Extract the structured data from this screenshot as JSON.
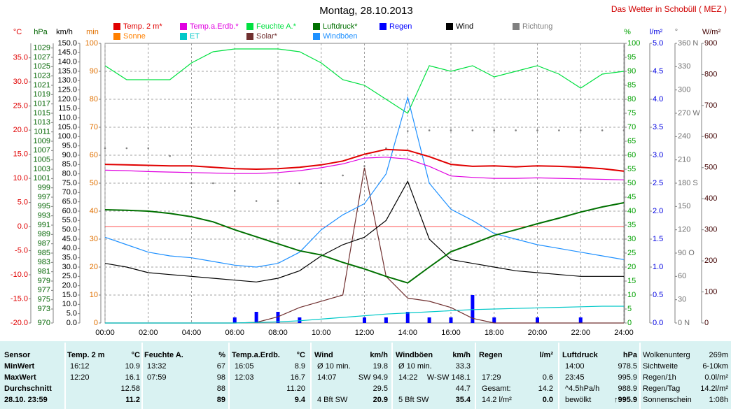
{
  "chart_data": {
    "type": "line",
    "title": "Montag, 28.10.2013",
    "subtitle": "Das Wetter in Schobüll ( MEZ )",
    "x": [
      0,
      1,
      2,
      3,
      4,
      5,
      6,
      7,
      8,
      9,
      10,
      11,
      12,
      13,
      14,
      15,
      16,
      17,
      18,
      19,
      20,
      21,
      22,
      23,
      24
    ],
    "xlim": [
      0,
      24
    ],
    "xticks": [
      {
        "value": 0,
        "label": "00:00"
      },
      {
        "value": 2,
        "label": "02:00"
      },
      {
        "value": 4,
        "label": "04:00"
      },
      {
        "value": 6,
        "label": "06:00"
      },
      {
        "value": 8,
        "label": "08:00"
      },
      {
        "value": 10,
        "label": "10:00"
      },
      {
        "value": 12,
        "label": "12:00"
      },
      {
        "value": 14,
        "label": "14:00"
      },
      {
        "value": 16,
        "label": "16:00"
      },
      {
        "value": 18,
        "label": "18:00"
      },
      {
        "value": 20,
        "label": "20:00"
      },
      {
        "value": 22,
        "label": "22:00"
      },
      {
        "value": 24,
        "label": "24:00"
      }
    ],
    "xgrid": true,
    "axes": [
      {
        "label": "°C",
        "color": "#e00000",
        "side": "left",
        "lim": [
          -20,
          38
        ],
        "ticks": [
          {
            "value": -20,
            "label": "-20.0"
          },
          {
            "value": -15,
            "label": "-15.0"
          },
          {
            "value": -10,
            "label": "-10.0"
          },
          {
            "value": -5,
            "label": "-5.0"
          },
          {
            "value": 0,
            "label": "0.0"
          },
          {
            "value": 5,
            "label": "5.0"
          },
          {
            "value": 10,
            "label": "10.0"
          },
          {
            "value": 15,
            "label": "15.0"
          },
          {
            "value": 20,
            "label": "20.0"
          },
          {
            "value": 25,
            "label": "25.0"
          },
          {
            "value": 30,
            "label": "30.0"
          },
          {
            "value": 35,
            "label": "35.0"
          }
        ]
      },
      {
        "label": "hPa",
        "color": "#006400",
        "side": "left",
        "lim": [
          970,
          1030
        ],
        "ticks": [
          970,
          973,
          975,
          977,
          979,
          981,
          983,
          985,
          987,
          989,
          991,
          993,
          995,
          997,
          999,
          1001,
          1003,
          1005,
          1007,
          1009,
          1011,
          1013,
          1015,
          1017,
          1019,
          1021,
          1023,
          1025,
          1027,
          1029
        ]
      },
      {
        "label": "km/h",
        "color": "#000000",
        "side": "left",
        "lim": [
          0,
          150
        ],
        "ticks": [
          {
            "value": 0,
            "label": "0.0"
          },
          {
            "value": 5,
            "label": "5.0"
          },
          {
            "value": 10,
            "label": "10.0"
          },
          {
            "value": 15,
            "label": "15.0"
          },
          {
            "value": 20,
            "label": "20.0"
          },
          {
            "value": 25,
            "label": "25.0"
          },
          {
            "value": 30,
            "label": "30.0"
          },
          {
            "value": 35,
            "label": "35.0"
          },
          {
            "value": 40,
            "label": "40.0"
          },
          {
            "value": 45,
            "label": "45.0"
          },
          {
            "value": 50,
            "label": "50.0"
          },
          {
            "value": 55,
            "label": "55.0"
          },
          {
            "value": 60,
            "label": "60.0"
          },
          {
            "value": 65,
            "label": "65.0"
          },
          {
            "value": 70,
            "label": "70.0"
          },
          {
            "value": 75,
            "label": "75.0"
          },
          {
            "value": 80,
            "label": "80.0"
          },
          {
            "value": 85,
            "label": "85.0"
          },
          {
            "value": 90,
            "label": "90.0"
          },
          {
            "value": 95,
            "label": "95.0"
          },
          {
            "value": 100,
            "label": "100.0"
          },
          {
            "value": 105,
            "label": "105.0"
          },
          {
            "value": 110,
            "label": "110.0"
          },
          {
            "value": 115,
            "label": "115.0"
          },
          {
            "value": 120,
            "label": "120.0"
          },
          {
            "value": 125,
            "label": "125.0"
          },
          {
            "value": 130,
            "label": "130.0"
          },
          {
            "value": 135,
            "label": "135.0"
          },
          {
            "value": 140,
            "label": "140.0"
          },
          {
            "value": 145,
            "label": "145.0"
          },
          {
            "value": 150,
            "label": "150.0"
          }
        ]
      },
      {
        "label": "min",
        "color": "#e07000",
        "side": "left",
        "lim": [
          0,
          100
        ],
        "grid": true,
        "ticks": [
          0,
          10,
          20,
          30,
          40,
          50,
          60,
          70,
          80,
          90,
          100
        ]
      },
      {
        "label": "%",
        "color": "#00a000",
        "side": "right",
        "lim": [
          0,
          100
        ],
        "ticks": [
          0,
          5,
          10,
          15,
          20,
          25,
          30,
          35,
          40,
          45,
          50,
          55,
          60,
          65,
          70,
          75,
          80,
          85,
          90,
          95,
          100
        ]
      },
      {
        "label": "l/m²",
        "color": "#0000e0",
        "side": "right",
        "lim": [
          0,
          5
        ],
        "ticks": [
          {
            "value": 0,
            "label": "0.0"
          },
          {
            "value": 0.5,
            "label": "0.5"
          },
          {
            "value": 1,
            "label": "1.0"
          },
          {
            "value": 1.5,
            "label": "1.5"
          },
          {
            "value": 2,
            "label": "2.0"
          },
          {
            "value": 2.5,
            "label": "2.5"
          },
          {
            "value": 3,
            "label": "3.0"
          },
          {
            "value": 3.5,
            "label": "3.5"
          },
          {
            "value": 4,
            "label": "4.0"
          },
          {
            "value": 4.5,
            "label": "4.5"
          },
          {
            "value": 5,
            "label": "5.0"
          }
        ]
      },
      {
        "label": "°",
        "color": "#707070",
        "side": "right",
        "lim": [
          0,
          360
        ],
        "ticks": [
          {
            "value": 0,
            "label": "0 N"
          },
          30,
          60,
          {
            "value": 90,
            "label": "90 O"
          },
          120,
          150,
          {
            "value": 180,
            "label": "180 S"
          },
          210,
          240,
          {
            "value": 270,
            "label": "270 W"
          },
          300,
          330,
          {
            "value": 360,
            "label": "360 N"
          }
        ]
      },
      {
        "label": "W/m²",
        "color": "#400000",
        "side": "right",
        "lim": [
          0,
          900
        ],
        "ticks": [
          0,
          100,
          200,
          300,
          400,
          500,
          600,
          700,
          800,
          900
        ]
      }
    ],
    "reference_line": {
      "axis": 0,
      "value": 0,
      "color": "#ff5050"
    },
    "series": [
      {
        "name": "Temp. 2 m*",
        "color": "#e00000",
        "axis": 0,
        "style": "line",
        "values": [
          12.9,
          12.8,
          12.7,
          12.6,
          12.6,
          12.3,
          12.0,
          11.9,
          12.0,
          12.3,
          12.8,
          13.6,
          15.0,
          16.0,
          15.8,
          14.5,
          12.9,
          12.5,
          12.6,
          12.4,
          12.6,
          12.5,
          12.3,
          12.0,
          11.5
        ]
      },
      {
        "name": "Sonne",
        "color": "#ff8000",
        "axis": 3,
        "style": "bar",
        "values": [
          0,
          0,
          0,
          0,
          0,
          0,
          0,
          0,
          0,
          0,
          0,
          0,
          1,
          0.8,
          0,
          0.5,
          1,
          0.5,
          0,
          0,
          0,
          0,
          0,
          0,
          0
        ]
      },
      {
        "name": "Temp.a.Erdb.*",
        "color": "#e000e0",
        "axis": 0,
        "style": "line",
        "values": [
          11.7,
          11.6,
          11.4,
          11.3,
          11.2,
          11.1,
          11.0,
          11.0,
          11.2,
          11.6,
          12.2,
          13.0,
          14.2,
          14.4,
          14.0,
          12.5,
          10.5,
          10.2,
          10.0,
          10.0,
          10.1,
          10.0,
          9.9,
          9.8,
          9.7
        ]
      },
      {
        "name": "ET",
        "color": "#00c8c8",
        "axis": 5,
        "style": "line",
        "values": [
          0,
          0,
          0,
          0,
          0,
          0,
          0,
          0.01,
          0.02,
          0.04,
          0.07,
          0.1,
          0.13,
          0.16,
          0.18,
          0.2,
          0.22,
          0.24,
          0.25,
          0.26,
          0.27,
          0.28,
          0.29,
          0.3,
          0.3
        ]
      },
      {
        "name": "Feuchte A.*",
        "color": "#00e040",
        "axis": 4,
        "style": "line",
        "values": [
          92,
          87,
          87,
          87,
          93,
          97,
          98,
          98,
          98,
          97,
          93,
          87,
          85,
          80,
          75,
          92,
          90,
          92,
          88,
          90,
          92,
          89,
          84,
          89,
          90
        ]
      },
      {
        "name": "Solar*",
        "color": "#703030",
        "axis": 7,
        "style": "line",
        "values": [
          0,
          0,
          0,
          0,
          0,
          0,
          0,
          2,
          20,
          50,
          70,
          90,
          500,
          150,
          80,
          70,
          50,
          15,
          0,
          0,
          0,
          0,
          0,
          0,
          0
        ]
      },
      {
        "name": "Luftdruck*",
        "color": "#007000",
        "axis": 1,
        "style": "line",
        "values": [
          994.3,
          994.2,
          994.0,
          993.5,
          992.8,
          991.7,
          990.0,
          988.5,
          987.0,
          985.5,
          984.6,
          983.0,
          981.6,
          980.0,
          978.6,
          982.0,
          985.3,
          987.0,
          988.8,
          990.0,
          991.3,
          992.5,
          993.8,
          994.9,
          995.8
        ]
      },
      {
        "name": "Windböen",
        "color": "#1e90ff",
        "axis": 2,
        "style": "line",
        "values": [
          46,
          42,
          38,
          36,
          35,
          33,
          31,
          30,
          32,
          38,
          50,
          58,
          64,
          80,
          121,
          75,
          61,
          55,
          48,
          45,
          42,
          40,
          38,
          36,
          34
        ]
      },
      {
        "name": "Regen",
        "color": "#0000ff",
        "axis": 5,
        "style": "bar",
        "values": [
          0,
          0,
          0,
          0,
          0,
          0,
          0.1,
          0.2,
          0.2,
          0.1,
          0,
          0,
          0.1,
          0.1,
          0.2,
          0.1,
          0.1,
          0.5,
          0.1,
          0,
          0.1,
          0,
          0.1,
          0,
          0
        ]
      },
      {
        "name": "Wind",
        "color": "#000000",
        "axis": 2,
        "style": "line",
        "values": [
          32,
          30,
          27,
          26,
          25,
          24,
          23,
          22,
          24,
          28,
          36,
          42,
          46,
          55,
          76,
          45,
          34,
          32,
          30,
          28,
          27,
          26,
          25,
          25,
          25
        ]
      },
      {
        "name": "Richtung",
        "color": "#808080",
        "axis": 6,
        "style": "dots",
        "values": [
          225,
          225,
          225,
          215,
          180,
          180,
          170,
          157,
          157,
          180,
          180,
          190,
          202,
          225,
          247,
          248,
          248,
          248,
          248,
          248,
          248,
          248,
          248,
          248,
          248
        ]
      }
    ]
  },
  "stats_table": {
    "row_labels": [
      "Sensor",
      "MinWert",
      "MaxWert",
      "Durchschnitt",
      "28.10. 23:59"
    ],
    "columns": [
      {
        "name": "Temp. 2 m",
        "unit": "°C",
        "rows": [
          {
            "left": "16:12",
            "right": "10.9"
          },
          {
            "left": "12:20",
            "right": "16.1"
          },
          {
            "right": "12.58"
          },
          {
            "right": "11.2"
          }
        ]
      },
      {
        "name": "Feuchte A.",
        "unit": "%",
        "rows": [
          {
            "left": "13:32",
            "right": "67"
          },
          {
            "left": "07:59",
            "right": "98"
          },
          {
            "right": "88"
          },
          {
            "right": "89"
          }
        ]
      },
      {
        "name": "Temp.a.Erdb.",
        "unit": "°C",
        "rows": [
          {
            "left": "16:05",
            "right": "8.9"
          },
          {
            "left": "12:03",
            "right": "16.7"
          },
          {
            "right": "11.20"
          },
          {
            "right": "9.4"
          }
        ]
      },
      {
        "name": "Wind",
        "unit": "km/h",
        "rows": [
          {
            "left": "Ø 10 min.",
            "right": "19.8"
          },
          {
            "left": "14:07",
            "right": "SW 94.9"
          },
          {
            "right": "29.5"
          },
          {
            "left": "4 Bft SW",
            "right": "20.9"
          }
        ]
      },
      {
        "name": "Windböen",
        "unit": "km/h",
        "rows": [
          {
            "left": "Ø 10 min.",
            "right": "33.3"
          },
          {
            "left": "14:22",
            "right": "W-SW 148.1"
          },
          {
            "right": "44.7"
          },
          {
            "left": "5 Bft SW",
            "right": "35.4"
          }
        ]
      },
      {
        "name": "Regen",
        "unit": "l/m²",
        "rows": [
          null,
          {
            "left": "17:29",
            "right": "0.6"
          },
          {
            "left": "Gesamt:",
            "right": "14.2"
          },
          {
            "left": "14.2 l/m²",
            "right": "0.0"
          }
        ]
      },
      {
        "name": "Luftdruck",
        "unit": "hPa",
        "rows": [
          {
            "left": "14:00",
            "right": "978.5"
          },
          {
            "left": "23:45",
            "right": "995.9"
          },
          {
            "left": "^4.5hPa/h",
            "right": "988.9"
          },
          {
            "left": "bewölkt",
            "right": "↑995.9"
          }
        ]
      }
    ],
    "extra": [
      [
        "Wolkenunterg",
        "269m"
      ],
      [
        "Sichtweite",
        "6-10km"
      ],
      [
        "Regen/1h",
        "0.0l/m²"
      ],
      [
        "Regen/Tag",
        "14.2l/m²"
      ],
      [
        "Sonnenschein",
        "1:08h"
      ]
    ]
  }
}
